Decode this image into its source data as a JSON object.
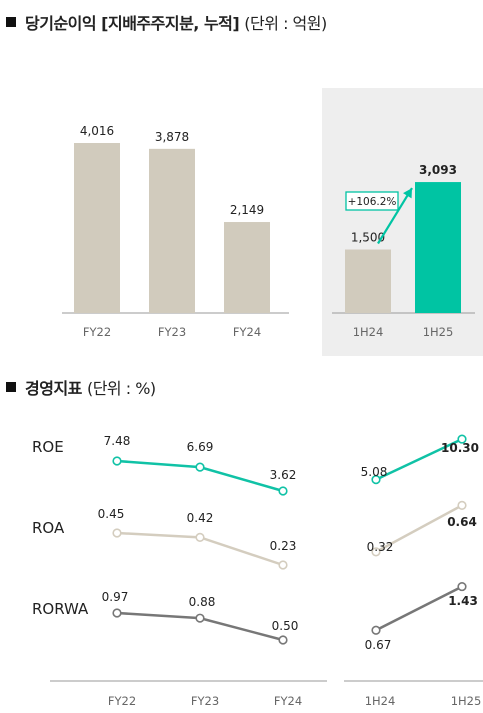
{
  "section1": {
    "title": "당기순이익 [지배주주지분, 누적]",
    "unit": "(단위 : 억원)"
  },
  "section2": {
    "title": "경영지표",
    "unit": "(단위 : %)"
  },
  "colors": {
    "bar_past": "#d1cbbd",
    "bar_current": "#00c4a3",
    "panel_bg": "#eeeeee",
    "roe_line": "#10c2a6",
    "roa_line": "#d4cdbf",
    "rorwa_line": "#777777",
    "axis": "#999999"
  },
  "chart_data": [
    {
      "type": "bar",
      "title": "당기순이익 [지배주주지분, 누적]",
      "categories": [
        "FY22",
        "FY23",
        "FY24",
        "1H24",
        "1H25"
      ],
      "values": [
        4016,
        3878,
        2149,
        1500,
        3093
      ],
      "value_labels": [
        "4,016",
        "3,878",
        "2,149",
        "1,500",
        "3,093"
      ],
      "highlighted": [
        "1H24",
        "1H25"
      ],
      "annotation": "+106.2%",
      "ylim": [
        0,
        4500
      ]
    },
    {
      "type": "line",
      "title": "경영지표",
      "categories": [
        "FY22",
        "FY23",
        "FY24",
        "1H24",
        "1H25"
      ],
      "series": [
        {
          "name": "ROE",
          "values": [
            7.48,
            6.69,
            3.62,
            5.08,
            10.3
          ],
          "labels": [
            "7.48",
            "6.69",
            "3.62",
            "5.08",
            "10.30"
          ]
        },
        {
          "name": "ROA",
          "values": [
            0.45,
            0.42,
            0.23,
            0.32,
            0.64
          ],
          "labels": [
            "0.45",
            "0.42",
            "0.23",
            "0.32",
            "0.64"
          ]
        },
        {
          "name": "RORWA",
          "values": [
            0.97,
            0.88,
            0.5,
            0.67,
            1.43
          ],
          "labels": [
            "0.97",
            "0.88",
            "0.50",
            "0.67",
            "1.43"
          ]
        }
      ]
    }
  ]
}
